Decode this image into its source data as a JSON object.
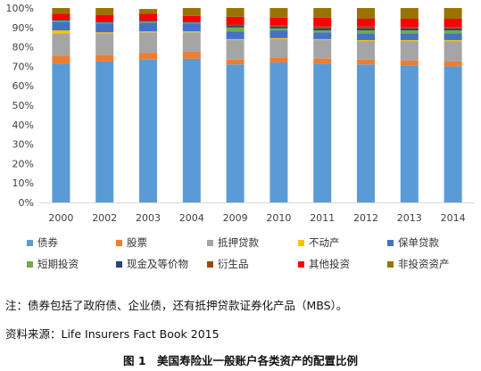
{
  "chart_data": {
    "type": "bar",
    "stacked": true,
    "percent": true,
    "categories": [
      "2000",
      "2002",
      "2003",
      "2004",
      "2009",
      "2010",
      "2011",
      "2012",
      "2013",
      "2014"
    ],
    "y_ticks": [
      "0%",
      "10%",
      "20%",
      "30%",
      "40%",
      "50%",
      "60%",
      "70%",
      "80%",
      "90%",
      "100%"
    ],
    "ylim": [
      0,
      100
    ],
    "grid": false,
    "legend_position": "bottom",
    "series": [
      {
        "name": "债券",
        "color": "#5B9BD5",
        "values": [
          71.5,
          72.5,
          73.5,
          74,
          71,
          72,
          71.5,
          71,
          70.5,
          70
        ]
      },
      {
        "name": "股票",
        "color": "#ED7D31",
        "values": [
          4,
          3.5,
          3.5,
          3.5,
          2.5,
          2.5,
          2.5,
          2.5,
          2.5,
          2.5
        ]
      },
      {
        "name": "抵押贷款",
        "color": "#A5A5A5",
        "values": [
          11.5,
          11,
          10.5,
          10,
          10,
          9.5,
          9.5,
          9.5,
          10,
          10.5
        ]
      },
      {
        "name": "不动产",
        "color": "#FFC000",
        "values": [
          1.5,
          0.5,
          0.5,
          0.5,
          0.5,
          0.5,
          0.5,
          0.5,
          0.5,
          0.5
        ]
      },
      {
        "name": "保单贷款",
        "color": "#4472C4",
        "values": [
          4.5,
          4.5,
          4.5,
          4,
          4,
          4,
          3.5,
          3.5,
          3.5,
          3.5
        ]
      },
      {
        "name": "短期投资",
        "color": "#70AD47",
        "values": [
          0.5,
          0.5,
          0.5,
          0.5,
          2,
          1,
          1,
          1.5,
          1.5,
          1.5
        ]
      },
      {
        "name": "现金及等价物",
        "color": "#264478",
        "values": [
          0.5,
          0.5,
          0.5,
          0.5,
          1,
          1,
          1,
          1,
          1,
          1
        ]
      },
      {
        "name": "衍生品",
        "color": "#9E480E",
        "values": [
          0,
          0,
          0,
          0,
          0.5,
          0.5,
          1,
          1,
          0.5,
          0.5
        ]
      },
      {
        "name": "其他投资",
        "color": "#FF0000",
        "values": [
          3,
          3.5,
          3.5,
          3,
          4,
          4,
          4.5,
          4,
          4.5,
          4.5
        ]
      },
      {
        "name": "非投资资产",
        "color": "#997300",
        "values": [
          3,
          3.5,
          2.5,
          4,
          4.5,
          5,
          5,
          5.5,
          5.5,
          5.5
        ]
      }
    ]
  },
  "note": "注：债券包括了政府债、企业债，还有抵押贷款证券化产品（MBS）。",
  "source": "资料来源：Life Insurers Fact Book 2015",
  "caption": "图 1　美国寿险业一般账户各类资产的配置比例"
}
